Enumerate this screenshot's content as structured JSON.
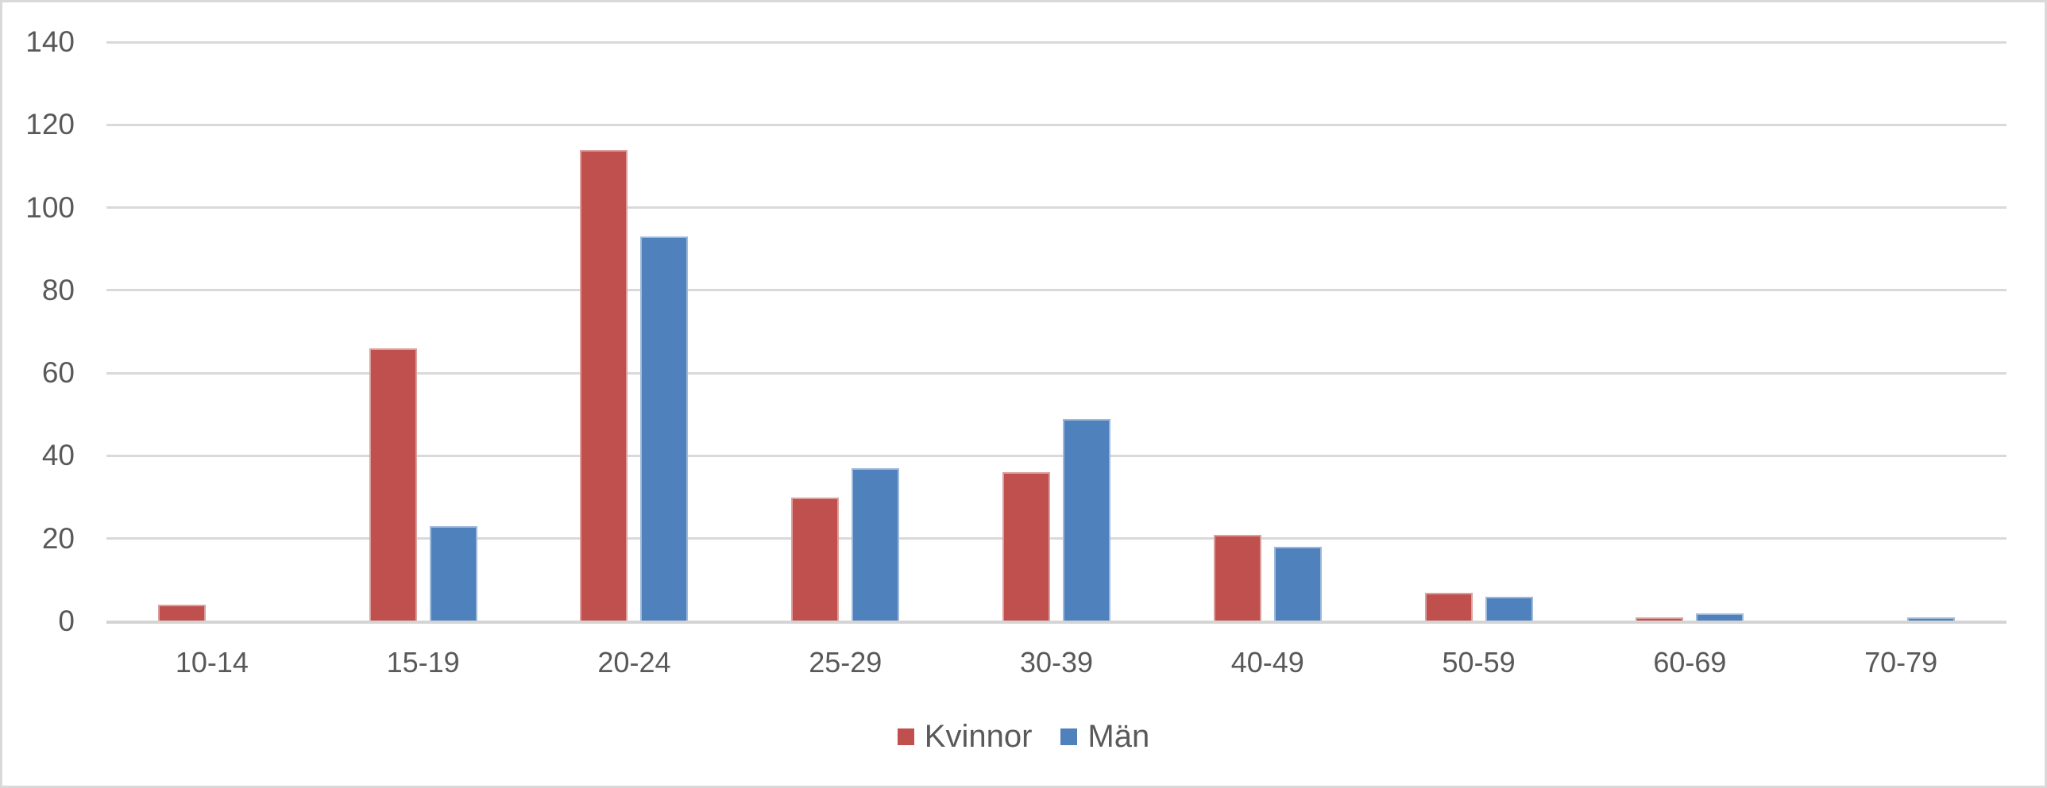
{
  "chart_data": {
    "type": "bar",
    "title": "",
    "xlabel": "",
    "ylabel": "",
    "categories": [
      "10-14",
      "15-19",
      "20-24",
      "25-29",
      "30-39",
      "40-49",
      "50-59",
      "60-69",
      "70-79"
    ],
    "series": [
      {
        "name": "Kvinnor",
        "color": "#C0504D",
        "values": [
          4,
          66,
          114,
          30,
          36,
          21,
          7,
          1,
          0
        ]
      },
      {
        "name": "Män",
        "color": "#4F81BD",
        "values": [
          0,
          23,
          93,
          37,
          49,
          18,
          6,
          2,
          1
        ]
      }
    ],
    "ylim": [
      0,
      140
    ],
    "yticks": [
      0,
      20,
      40,
      60,
      80,
      100,
      120,
      140
    ],
    "grid": true,
    "legend_position": "bottom"
  },
  "colors": {
    "series_kvinnor": "#C0504D",
    "series_man": "#4F81BD",
    "gridline": "#D9D9D9",
    "axis_text": "#595959",
    "chart_border": "#D9D9D9",
    "background": "#FFFFFF"
  }
}
